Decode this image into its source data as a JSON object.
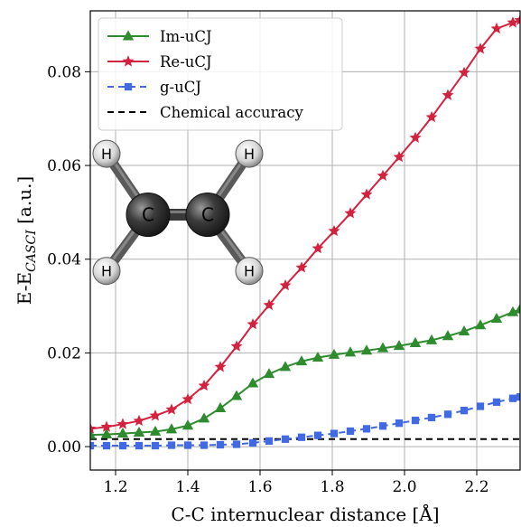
{
  "chart_data": {
    "type": "line",
    "xlabel": "C-C internuclear distance [Å]",
    "ylabel_main": "E-E",
    "ylabel_sub": "CASCI",
    "ylabel_unit": " [a.u.]",
    "xlim": [
      1.13,
      2.32
    ],
    "ylim": [
      -0.005,
      0.093
    ],
    "xticks": [
      1.2,
      1.4,
      1.6,
      1.8,
      2.0,
      2.2
    ],
    "xtick_labels": [
      "1.2",
      "1.4",
      "1.6",
      "1.8",
      "2.0",
      "2.2"
    ],
    "yticks": [
      0.0,
      0.02,
      0.04,
      0.06,
      0.08
    ],
    "ytick_labels": [
      "0.00",
      "0.02",
      "0.04",
      "0.06",
      "0.08"
    ],
    "grid": true,
    "legend_position": "top-left",
    "x": [
      1.13,
      1.175,
      1.22,
      1.265,
      1.31,
      1.355,
      1.4,
      1.445,
      1.49,
      1.535,
      1.58,
      1.625,
      1.67,
      1.715,
      1.76,
      1.805,
      1.85,
      1.895,
      1.94,
      1.985,
      2.03,
      2.075,
      2.12,
      2.165,
      2.21,
      2.255,
      2.3,
      2.32
    ],
    "series": [
      {
        "name": "Im-uCJ",
        "color": "#2e8b2e",
        "marker": "triangle",
        "dashed": false,
        "values": [
          0.0025,
          0.0026,
          0.0028,
          0.003,
          0.0032,
          0.0037,
          0.0045,
          0.006,
          0.0082,
          0.0108,
          0.0135,
          0.0155,
          0.017,
          0.0182,
          0.019,
          0.0196,
          0.0201,
          0.0205,
          0.021,
          0.0215,
          0.0221,
          0.0227,
          0.0236,
          0.0246,
          0.0259,
          0.0273,
          0.0287,
          0.0293
        ]
      },
      {
        "name": "Re-uCJ",
        "color": "#d4213d",
        "marker": "star",
        "dashed": false,
        "values": [
          0.0038,
          0.0042,
          0.0048,
          0.0055,
          0.0066,
          0.0079,
          0.0101,
          0.013,
          0.017,
          0.0214,
          0.0261,
          0.0302,
          0.0344,
          0.0382,
          0.0423,
          0.046,
          0.0498,
          0.0538,
          0.0578,
          0.0618,
          0.0659,
          0.0703,
          0.075,
          0.0798,
          0.0849,
          0.0892,
          0.0905,
          0.091
        ]
      },
      {
        "name": "g-uCJ",
        "color": "#4169e1",
        "marker": "square",
        "dashed": true,
        "values": [
          0.0002,
          0.0002,
          0.0002,
          0.0002,
          0.0002,
          0.0003,
          0.0003,
          0.0003,
          0.0004,
          0.0005,
          0.0008,
          0.0012,
          0.0016,
          0.002,
          0.0024,
          0.0028,
          0.0033,
          0.0038,
          0.0044,
          0.005,
          0.0056,
          0.0062,
          0.0069,
          0.0077,
          0.0086,
          0.0095,
          0.0103,
          0.0106
        ]
      }
    ],
    "reference_line": {
      "name": "Chemical accuracy",
      "value": 0.0016,
      "color": "#000000",
      "dashed": true
    }
  },
  "molecule": {
    "atoms": [
      {
        "label": "C",
        "kind": "carbon",
        "x": 1.29,
        "y": 0.0495
      },
      {
        "label": "C",
        "kind": "carbon",
        "x": 1.455,
        "y": 0.0495
      },
      {
        "label": "H",
        "kind": "hydrogen",
        "x": 1.175,
        "y": 0.0625
      },
      {
        "label": "H",
        "kind": "hydrogen",
        "x": 1.57,
        "y": 0.0625
      },
      {
        "label": "H",
        "kind": "hydrogen",
        "x": 1.175,
        "y": 0.0375
      },
      {
        "label": "H",
        "kind": "hydrogen",
        "x": 1.57,
        "y": 0.0375
      }
    ],
    "bonds": [
      [
        0,
        1
      ],
      [
        0,
        2
      ],
      [
        0,
        4
      ],
      [
        1,
        3
      ],
      [
        1,
        5
      ]
    ]
  }
}
